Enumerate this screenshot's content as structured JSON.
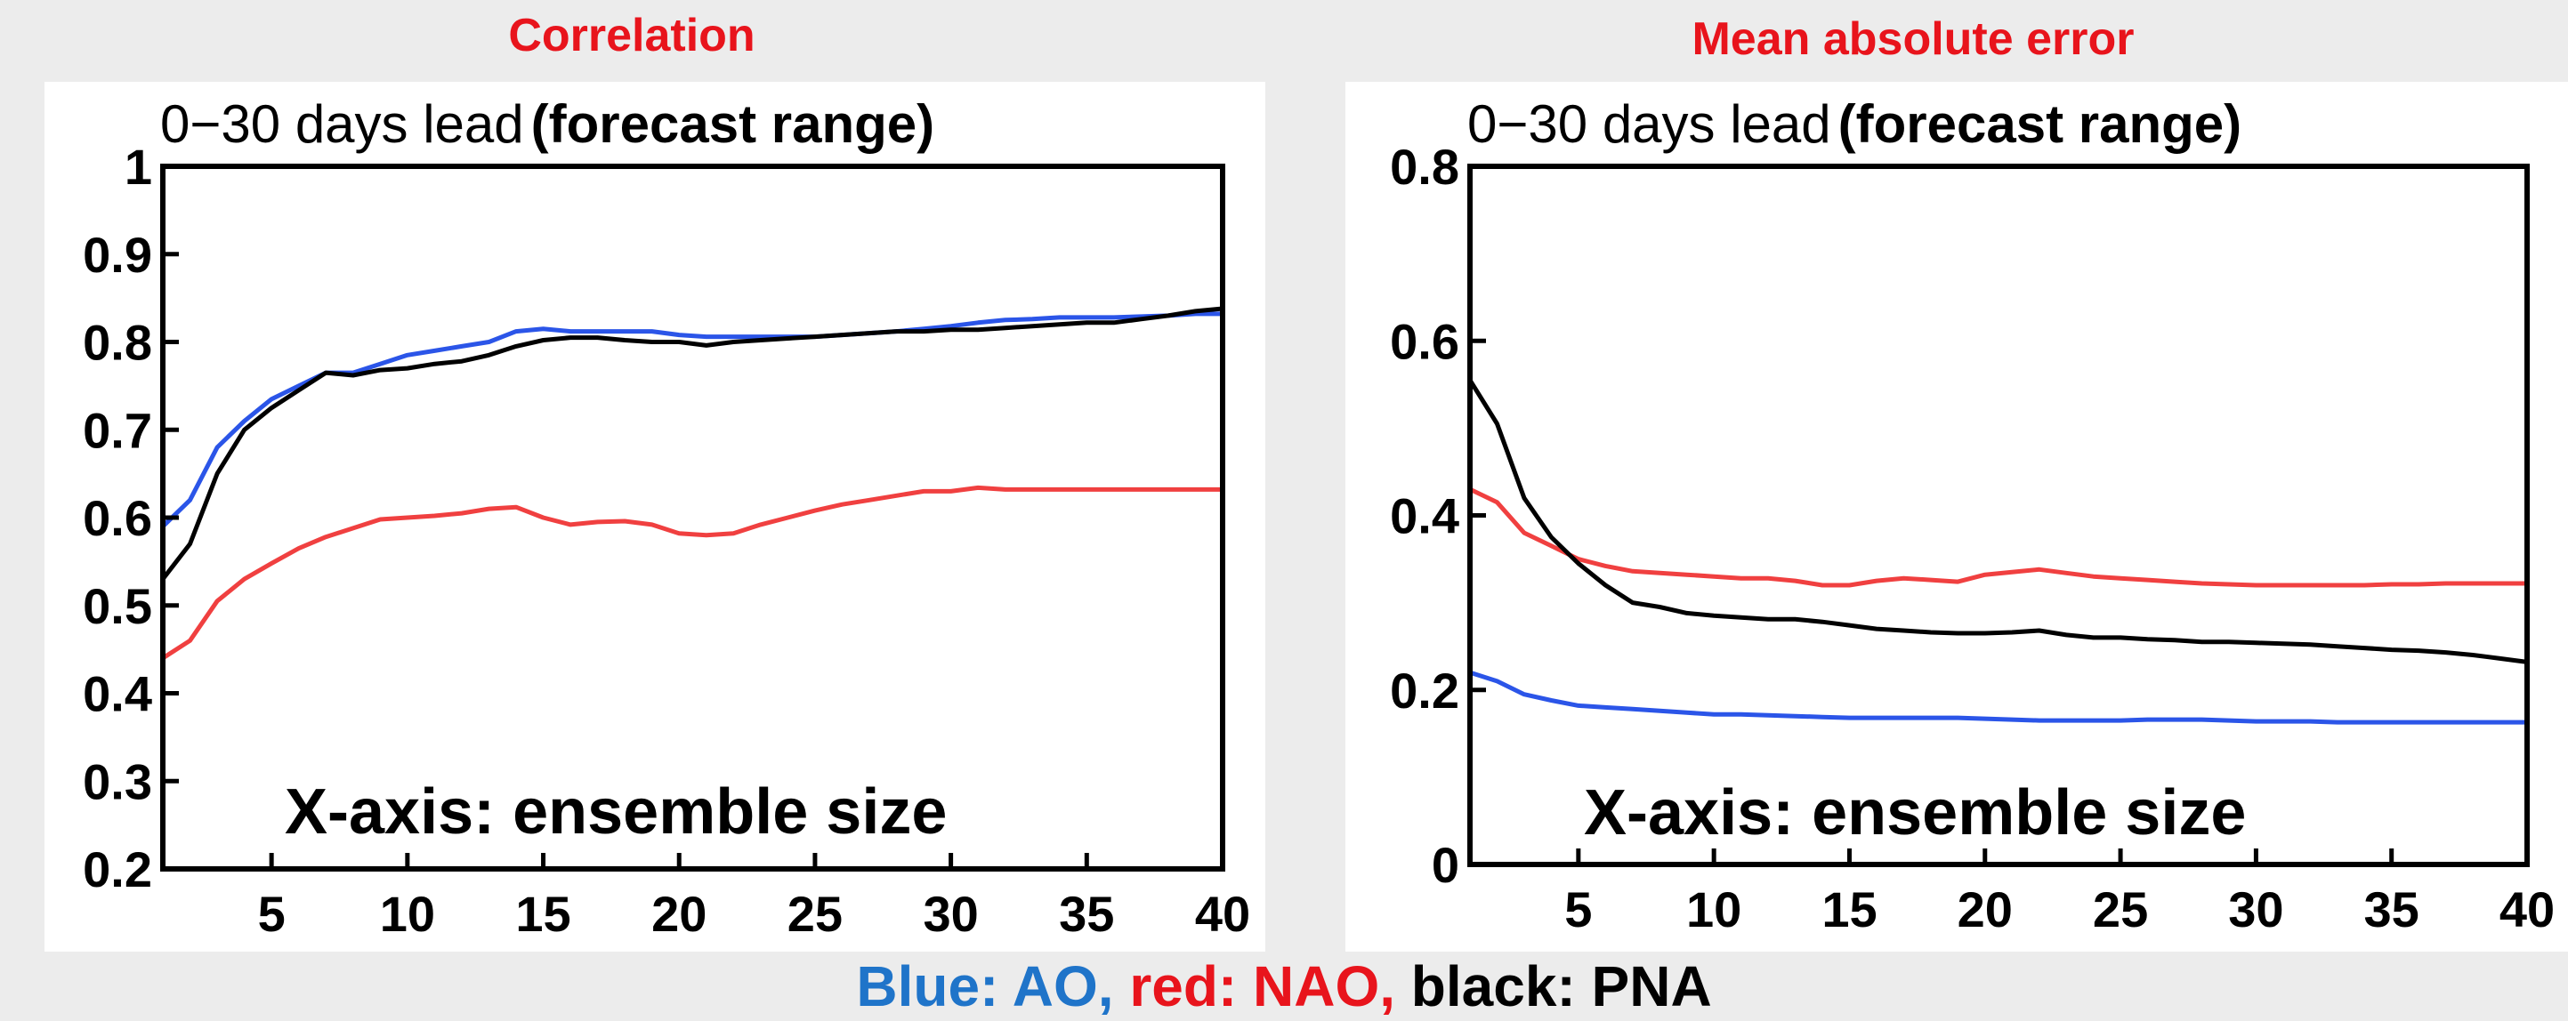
{
  "captions": {
    "left": "Correlation",
    "right": "Mean absolute error"
  },
  "legend": {
    "ao": "Blue: AO,",
    "nao": "red: NAO,",
    "pna": "black: PNA"
  },
  "colors": {
    "ao": "#2b55e8",
    "nao": "#f04040",
    "pna": "#000000"
  },
  "chart_data": [
    {
      "type": "line",
      "title": "0−30  days  lead",
      "title_suffix": "(forecast range)",
      "annotation": "X-axis: ensemble size",
      "xlabel": "",
      "ylabel": "",
      "xlim": [
        1,
        40
      ],
      "ylim": [
        0.2,
        1.0
      ],
      "xticks": [
        5,
        10,
        15,
        20,
        25,
        30,
        35,
        40
      ],
      "yticks": [
        0.2,
        0.3,
        0.4,
        0.5,
        0.6,
        0.7,
        0.8,
        0.9,
        1.0
      ],
      "ytick_labels": [
        "0.2",
        "0.3",
        "0.4",
        "0.5",
        "0.6",
        "0.7",
        "0.8",
        "0.9",
        "1"
      ],
      "x": [
        1,
        2,
        3,
        4,
        5,
        6,
        7,
        8,
        9,
        10,
        11,
        12,
        13,
        14,
        15,
        16,
        17,
        18,
        19,
        20,
        21,
        22,
        23,
        24,
        25,
        26,
        27,
        28,
        29,
        30,
        31,
        32,
        33,
        34,
        35,
        36,
        37,
        38,
        39,
        40
      ],
      "series": [
        {
          "name": "AO",
          "color": "#2b55e8",
          "values": [
            0.59,
            0.62,
            0.68,
            0.71,
            0.735,
            0.75,
            0.765,
            0.765,
            0.775,
            0.785,
            0.79,
            0.795,
            0.8,
            0.812,
            0.815,
            0.812,
            0.812,
            0.812,
            0.812,
            0.808,
            0.806,
            0.806,
            0.806,
            0.806,
            0.806,
            0.808,
            0.81,
            0.812,
            0.815,
            0.818,
            0.822,
            0.825,
            0.826,
            0.828,
            0.828,
            0.828,
            0.829,
            0.83,
            0.832,
            0.832
          ]
        },
        {
          "name": "NAO",
          "color": "#f04040",
          "values": [
            0.44,
            0.46,
            0.505,
            0.53,
            0.548,
            0.565,
            0.578,
            0.588,
            0.598,
            0.6,
            0.602,
            0.605,
            0.61,
            0.612,
            0.6,
            0.592,
            0.595,
            0.596,
            0.592,
            0.582,
            0.58,
            0.582,
            0.592,
            0.6,
            0.608,
            0.615,
            0.62,
            0.625,
            0.63,
            0.63,
            0.634,
            0.632,
            0.632,
            0.632,
            0.632,
            0.632,
            0.632,
            0.632,
            0.632,
            0.632
          ]
        },
        {
          "name": "PNA",
          "color": "#000000",
          "values": [
            0.53,
            0.57,
            0.65,
            0.7,
            0.725,
            0.745,
            0.765,
            0.762,
            0.768,
            0.77,
            0.775,
            0.778,
            0.785,
            0.795,
            0.802,
            0.805,
            0.805,
            0.802,
            0.8,
            0.8,
            0.796,
            0.8,
            0.802,
            0.804,
            0.806,
            0.808,
            0.81,
            0.812,
            0.812,
            0.814,
            0.814,
            0.816,
            0.818,
            0.82,
            0.822,
            0.822,
            0.826,
            0.83,
            0.835,
            0.838
          ]
        }
      ]
    },
    {
      "type": "line",
      "title": "0−30  days  lead",
      "title_suffix": "(forecast range)",
      "annotation": "X-axis: ensemble size",
      "xlabel": "",
      "ylabel": "",
      "xlim": [
        1,
        40
      ],
      "ylim": [
        0.0,
        0.8
      ],
      "xticks": [
        5,
        10,
        15,
        20,
        25,
        30,
        35,
        40
      ],
      "yticks": [
        0.0,
        0.2,
        0.4,
        0.6,
        0.8
      ],
      "ytick_labels": [
        "0",
        "0.2",
        "0.4",
        "0.6",
        "0.8"
      ],
      "x": [
        1,
        2,
        3,
        4,
        5,
        6,
        7,
        8,
        9,
        10,
        11,
        12,
        13,
        14,
        15,
        16,
        17,
        18,
        19,
        20,
        21,
        22,
        23,
        24,
        25,
        26,
        27,
        28,
        29,
        30,
        31,
        32,
        33,
        34,
        35,
        36,
        37,
        38,
        39,
        40
      ],
      "series": [
        {
          "name": "AO",
          "color": "#2b55e8",
          "values": [
            0.22,
            0.21,
            0.195,
            0.188,
            0.182,
            0.18,
            0.178,
            0.176,
            0.174,
            0.172,
            0.172,
            0.171,
            0.17,
            0.169,
            0.168,
            0.168,
            0.168,
            0.168,
            0.168,
            0.167,
            0.166,
            0.165,
            0.165,
            0.165,
            0.165,
            0.166,
            0.166,
            0.166,
            0.165,
            0.164,
            0.164,
            0.164,
            0.163,
            0.163,
            0.163,
            0.163,
            0.163,
            0.163,
            0.163,
            0.163
          ]
        },
        {
          "name": "NAO",
          "color": "#f04040",
          "values": [
            0.43,
            0.415,
            0.38,
            0.365,
            0.35,
            0.342,
            0.336,
            0.334,
            0.332,
            0.33,
            0.328,
            0.328,
            0.325,
            0.32,
            0.32,
            0.325,
            0.328,
            0.326,
            0.324,
            0.332,
            0.335,
            0.338,
            0.334,
            0.33,
            0.328,
            0.326,
            0.324,
            0.322,
            0.321,
            0.32,
            0.32,
            0.32,
            0.32,
            0.32,
            0.321,
            0.321,
            0.322,
            0.322,
            0.322,
            0.322
          ]
        },
        {
          "name": "PNA",
          "color": "#000000",
          "values": [
            0.555,
            0.505,
            0.42,
            0.375,
            0.345,
            0.32,
            0.3,
            0.295,
            0.288,
            0.285,
            0.283,
            0.281,
            0.281,
            0.278,
            0.274,
            0.27,
            0.268,
            0.266,
            0.265,
            0.265,
            0.266,
            0.268,
            0.263,
            0.26,
            0.26,
            0.258,
            0.257,
            0.255,
            0.255,
            0.254,
            0.253,
            0.252,
            0.25,
            0.248,
            0.246,
            0.245,
            0.243,
            0.24,
            0.236,
            0.232
          ]
        }
      ]
    }
  ]
}
